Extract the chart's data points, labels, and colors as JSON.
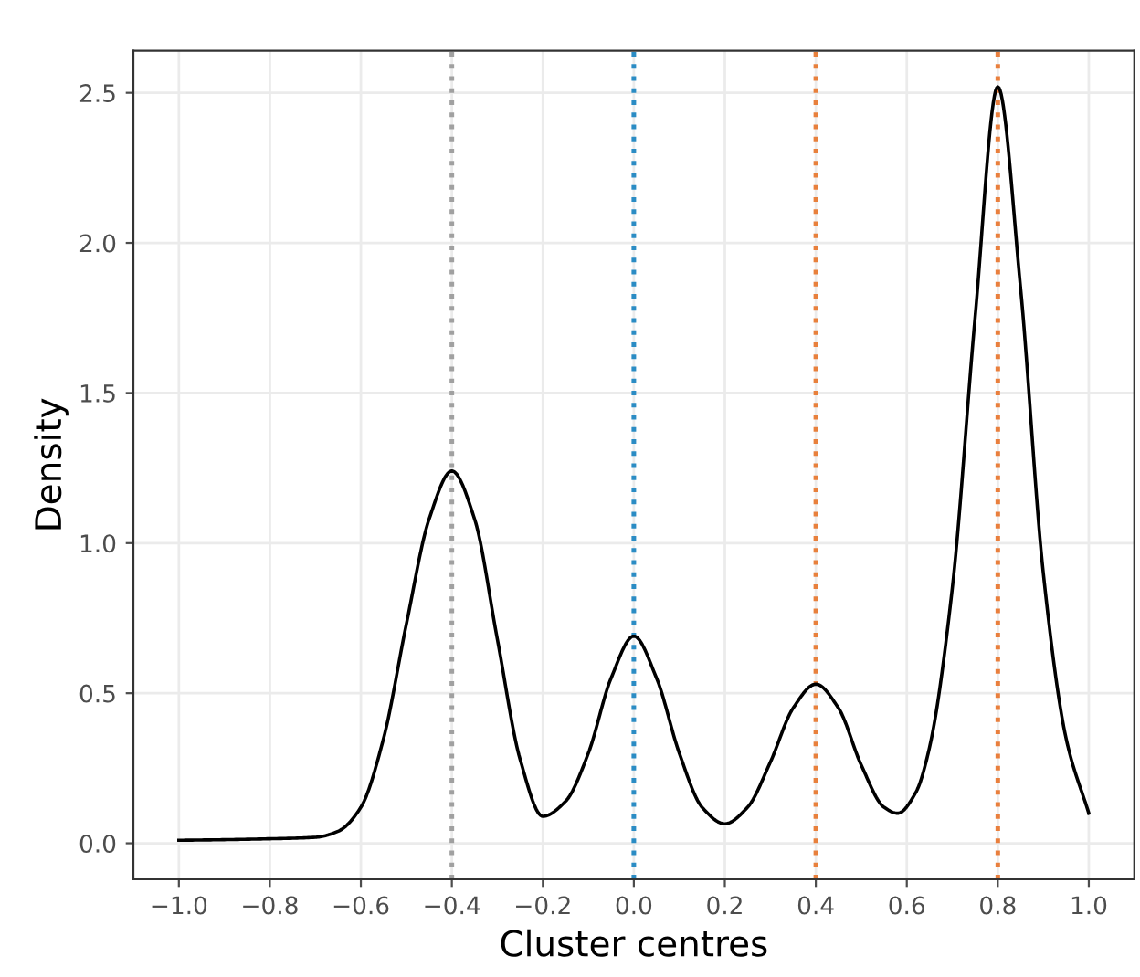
{
  "chart_data": {
    "type": "line",
    "xlabel": "Cluster centres",
    "ylabel": "Density",
    "xlim": [
      -1.1,
      1.1
    ],
    "ylim": [
      -0.12,
      2.64
    ],
    "xticks": [
      {
        "value": -1.0,
        "label": "−1.0"
      },
      {
        "value": -0.8,
        "label": "−0.8"
      },
      {
        "value": -0.6,
        "label": "−0.6"
      },
      {
        "value": -0.4,
        "label": "−0.4"
      },
      {
        "value": -0.2,
        "label": "−0.2"
      },
      {
        "value": 0.0,
        "label": "0.0"
      },
      {
        "value": 0.2,
        "label": "0.2"
      },
      {
        "value": 0.4,
        "label": "0.4"
      },
      {
        "value": 0.6,
        "label": "0.6"
      },
      {
        "value": 0.8,
        "label": "0.8"
      },
      {
        "value": 1.0,
        "label": "1.0"
      }
    ],
    "yticks": [
      {
        "value": 0.0,
        "label": "0.0"
      },
      {
        "value": 0.5,
        "label": "0.5"
      },
      {
        "value": 1.0,
        "label": "1.0"
      },
      {
        "value": 1.5,
        "label": "1.5"
      },
      {
        "value": 2.0,
        "label": "2.0"
      },
      {
        "value": 2.5,
        "label": "2.5"
      }
    ],
    "grid": true,
    "marker": "none",
    "line_style": "solid",
    "series": [
      {
        "color": "#000000",
        "x": [
          -1.0,
          -0.9,
          -0.8,
          -0.7,
          -0.65,
          -0.6,
          -0.55,
          -0.5,
          -0.45,
          -0.4,
          -0.35,
          -0.3,
          -0.25,
          -0.2,
          -0.15,
          -0.1,
          -0.05,
          0.0,
          0.05,
          0.1,
          0.15,
          0.2,
          0.25,
          0.3,
          0.35,
          0.4,
          0.45,
          0.5,
          0.55,
          0.58,
          0.62,
          0.65,
          0.7,
          0.75,
          0.8,
          0.85,
          0.9,
          0.95,
          1.0
        ],
        "values": [
          0.01,
          0.012,
          0.015,
          0.02,
          0.04,
          0.12,
          0.35,
          0.73,
          1.08,
          1.24,
          1.08,
          0.68,
          0.28,
          0.09,
          0.14,
          0.3,
          0.55,
          0.69,
          0.55,
          0.3,
          0.12,
          0.065,
          0.12,
          0.27,
          0.45,
          0.53,
          0.45,
          0.26,
          0.12,
          0.1,
          0.17,
          0.32,
          0.85,
          1.75,
          2.52,
          1.85,
          0.9,
          0.35,
          0.1
        ]
      }
    ],
    "ref_lines": [
      {
        "axis": "x",
        "value": -0.4,
        "color": "#a0a0a0",
        "line_style": "dotted"
      },
      {
        "axis": "x",
        "value": 0.0,
        "color": "#2b8cc4",
        "line_style": "dotted"
      },
      {
        "axis": "x",
        "value": 0.4,
        "color": "#e8803c",
        "line_style": "dotted"
      },
      {
        "axis": "x",
        "value": 0.8,
        "color": "#e97f3d",
        "line_style": "dotted"
      }
    ]
  }
}
